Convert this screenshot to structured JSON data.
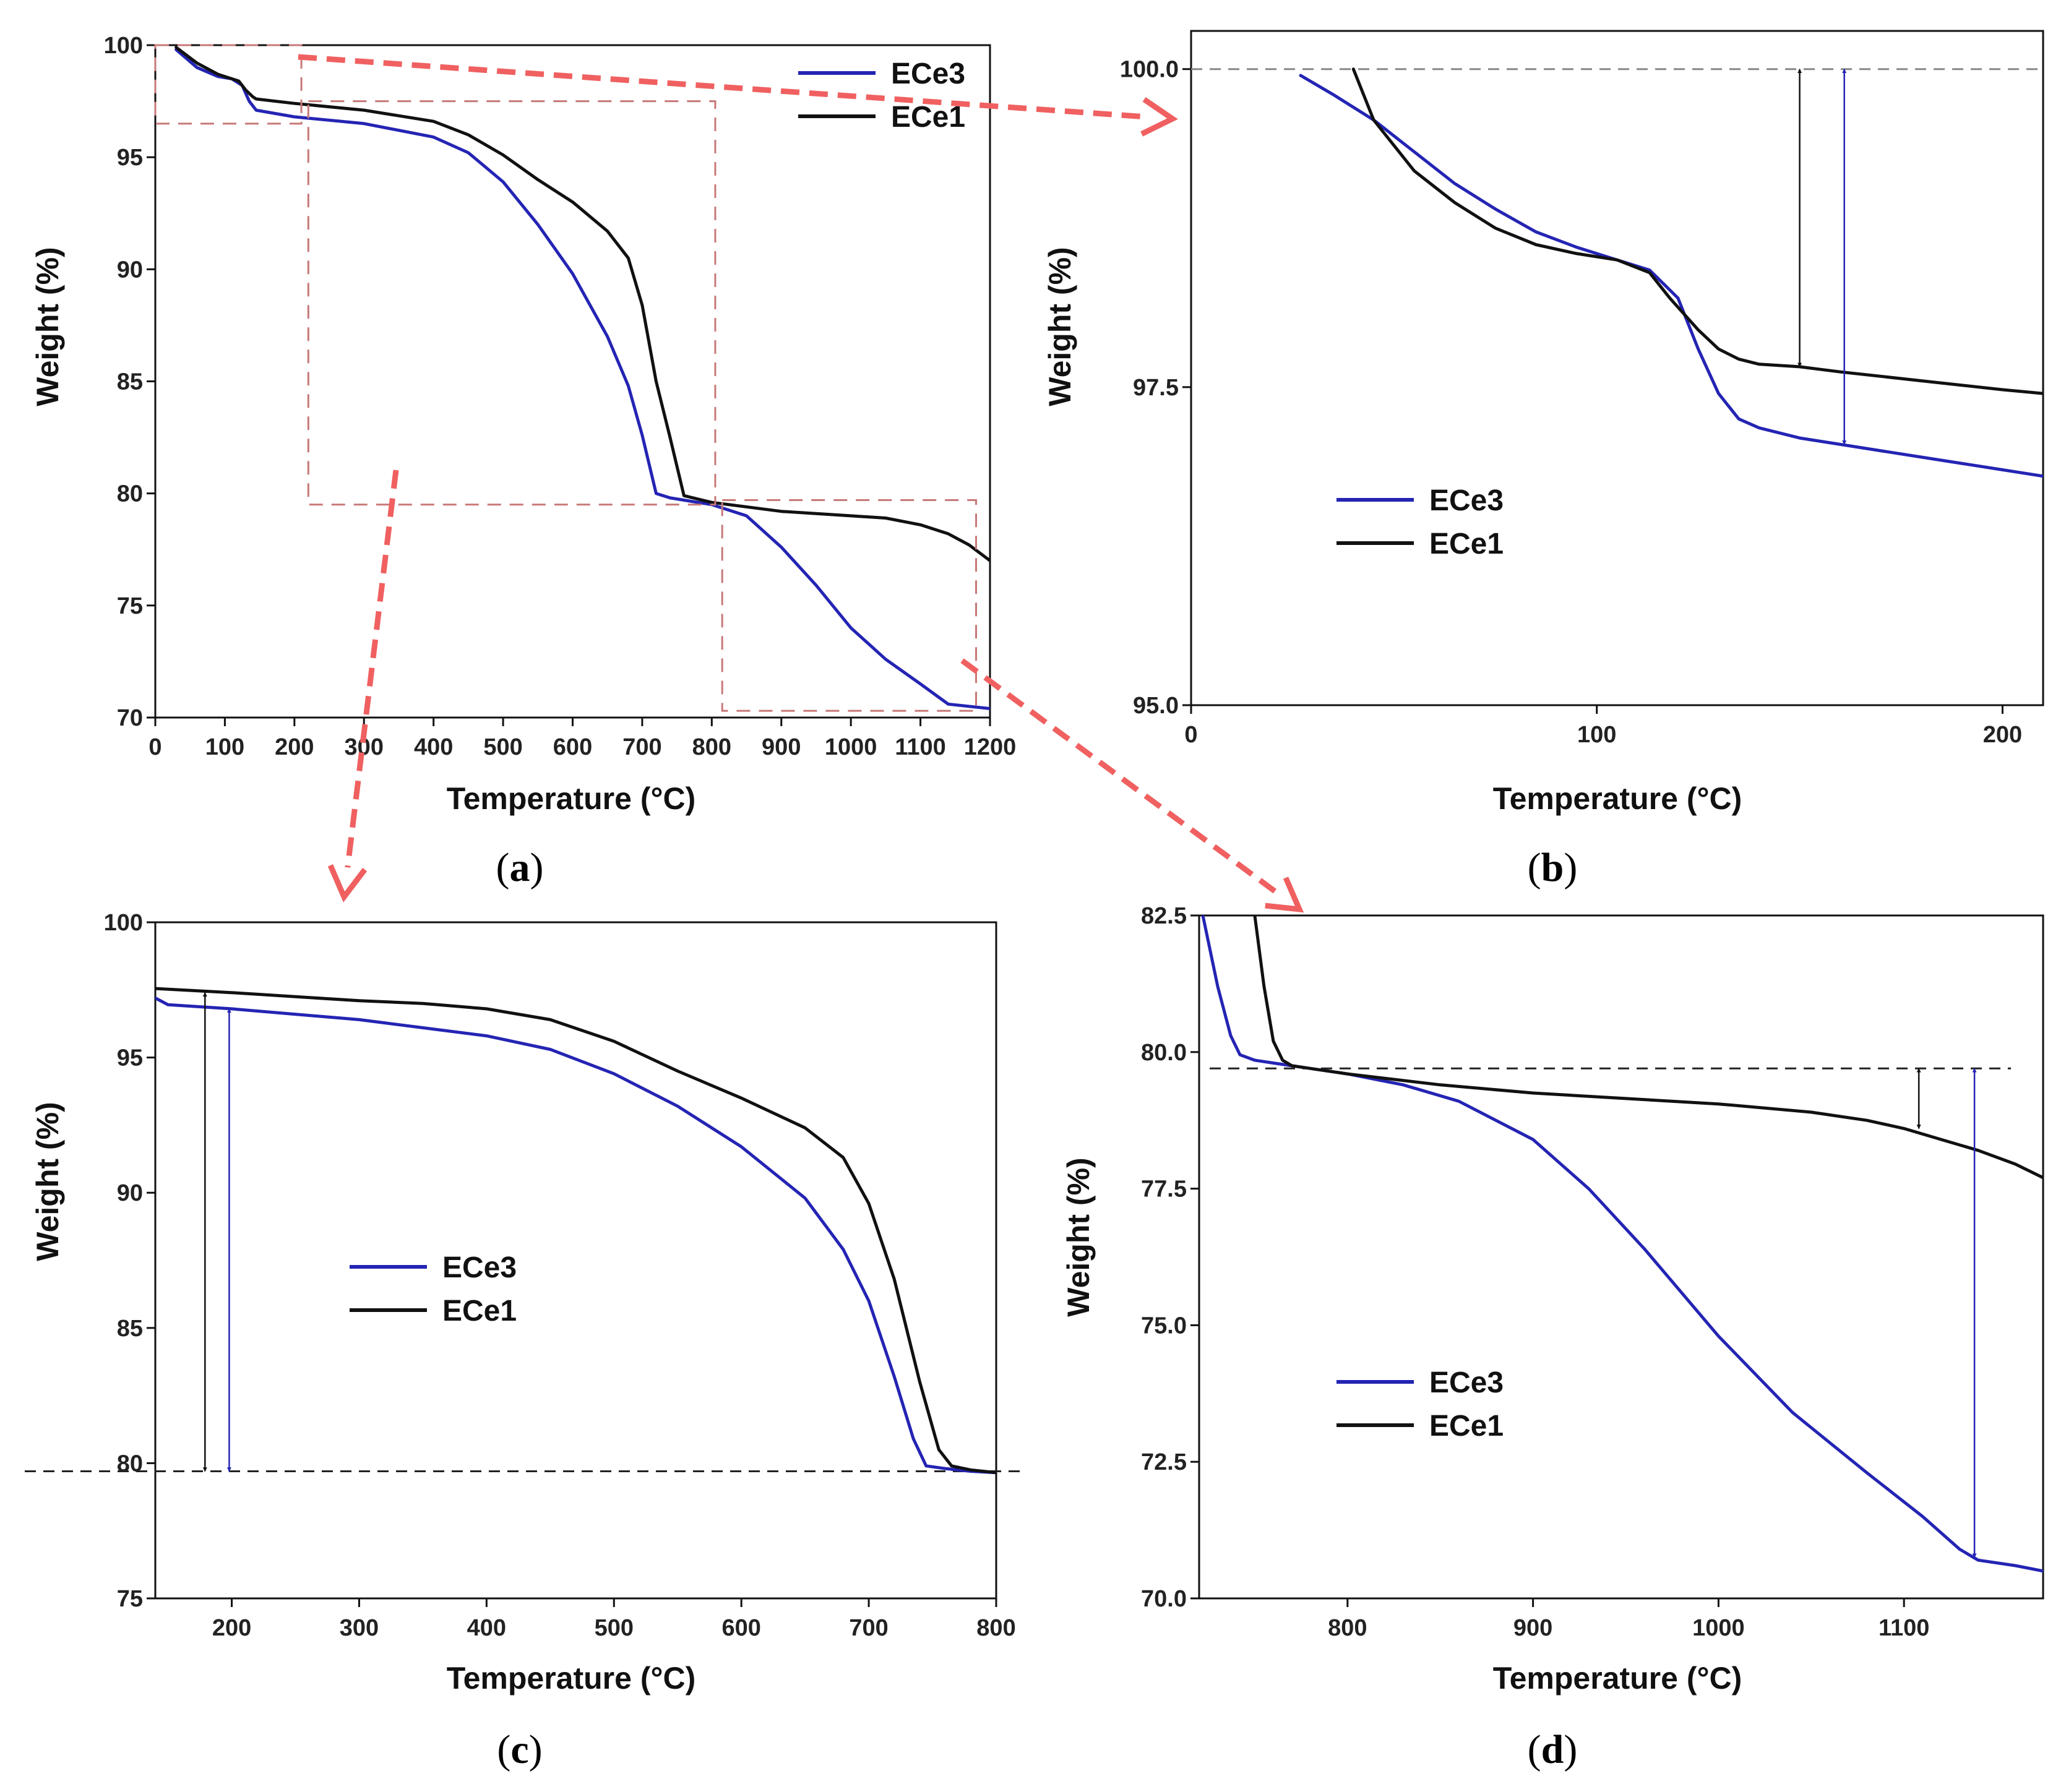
{
  "figure": {
    "colors": {
      "ECe3": "#2424b4",
      "ECe1": "#111111",
      "zoom_box": "#c87878",
      "zoom_arrow": "#f06060",
      "reference": "#444444"
    }
  },
  "chart_data": [
    {
      "id": "a",
      "type": "line",
      "panel_label": "a",
      "xlabel": "Temperature (°C)",
      "ylabel": "Weight (%)",
      "xlim": [
        0,
        1200
      ],
      "ylim": [
        70,
        100
      ],
      "xticks": [
        0,
        100,
        200,
        300,
        400,
        500,
        600,
        700,
        800,
        900,
        1000,
        1100,
        1200
      ],
      "yticks": [
        70,
        75,
        80,
        85,
        90,
        95,
        100
      ],
      "legend_position": "top-right",
      "series": [
        {
          "name": "ECe3",
          "color": "#2424b4",
          "x": [
            30,
            60,
            90,
            110,
            125,
            135,
            145,
            200,
            300,
            400,
            450,
            500,
            550,
            600,
            650,
            680,
            700,
            720,
            740,
            760,
            800,
            850,
            900,
            950,
            1000,
            1050,
            1100,
            1140,
            1200
          ],
          "y": [
            99.8,
            99.0,
            98.6,
            98.5,
            98.2,
            97.5,
            97.1,
            96.8,
            96.5,
            95.9,
            95.2,
            93.9,
            92.0,
            89.8,
            87.0,
            84.8,
            82.6,
            80.0,
            79.8,
            79.7,
            79.5,
            79.0,
            77.6,
            75.9,
            74.0,
            72.6,
            71.5,
            70.6,
            70.4
          ]
        },
        {
          "name": "ECe1",
          "color": "#111111",
          "x": [
            30,
            60,
            90,
            120,
            130,
            140,
            145,
            200,
            300,
            400,
            450,
            500,
            550,
            600,
            650,
            680,
            700,
            720,
            740,
            760,
            800,
            900,
            1000,
            1050,
            1100,
            1140,
            1170,
            1200
          ],
          "y": [
            99.9,
            99.2,
            98.7,
            98.4,
            98.0,
            97.7,
            97.6,
            97.4,
            97.1,
            96.6,
            96.0,
            95.1,
            94.0,
            93.0,
            91.7,
            90.5,
            88.4,
            85.0,
            82.5,
            79.9,
            79.6,
            79.2,
            79.0,
            78.9,
            78.6,
            78.2,
            77.7,
            77.0
          ]
        }
      ],
      "zoom_boxes": [
        {
          "x": [
            0,
            210
          ],
          "y": [
            96.5,
            100
          ]
        },
        {
          "x": [
            220,
            805
          ],
          "y": [
            79.5,
            97.5
          ]
        },
        {
          "x": [
            815,
            1180
          ],
          "y": [
            70.3,
            79.7
          ]
        }
      ]
    },
    {
      "id": "b",
      "type": "line",
      "panel_label": "b",
      "xlabel": "Temperature (°C)",
      "ylabel": "Weight (%)",
      "xlim": [
        0,
        210
      ],
      "ylim": [
        95,
        100.3
      ],
      "xticks": [
        0,
        100,
        200
      ],
      "xticklabels": [
        "0",
        "100",
        "200"
      ],
      "yticks": [
        95,
        97.5,
        100
      ],
      "yticklabels": [
        "95.0",
        "97.5",
        "100.0"
      ],
      "legend_position": "center-left",
      "series": [
        {
          "name": "ECe3",
          "color": "#2424b4",
          "x": [
            27,
            35,
            45,
            55,
            65,
            75,
            85,
            95,
            105,
            113,
            120,
            125,
            130,
            135,
            140,
            150,
            160,
            180,
            200,
            210
          ],
          "y": [
            99.95,
            99.8,
            99.6,
            99.35,
            99.1,
            98.9,
            98.72,
            98.6,
            98.5,
            98.42,
            98.2,
            97.8,
            97.45,
            97.25,
            97.18,
            97.1,
            97.05,
            96.95,
            96.85,
            96.8
          ]
        },
        {
          "name": "ECe1",
          "color": "#111111",
          "x": [
            40,
            45,
            55,
            65,
            75,
            85,
            95,
            105,
            113,
            118,
            125,
            130,
            135,
            140,
            150,
            160,
            180,
            200,
            210
          ],
          "y": [
            100.0,
            99.6,
            99.2,
            98.95,
            98.75,
            98.62,
            98.55,
            98.5,
            98.4,
            98.2,
            97.95,
            97.8,
            97.72,
            97.68,
            97.66,
            97.62,
            97.55,
            97.48,
            97.45
          ]
        }
      ],
      "reference_line_y": 100.0,
      "annotations": [
        {
          "type": "double-arrow",
          "series": "ECe1",
          "x": 150,
          "y_from": 100.0,
          "y_to": 97.66
        },
        {
          "type": "double-arrow",
          "series": "ECe3",
          "x": 161,
          "y_from": 100.0,
          "y_to": 97.05
        }
      ]
    },
    {
      "id": "c",
      "type": "line",
      "panel_label": "c",
      "xlabel": "Temperature (°C)",
      "ylabel": "Weight (%)",
      "xlim": [
        140,
        800
      ],
      "ylim": [
        75,
        100
      ],
      "xticks": [
        200,
        300,
        400,
        500,
        600,
        700,
        800
      ],
      "yticks": [
        75,
        80,
        85,
        90,
        95,
        100
      ],
      "legend_position": "center-left",
      "series": [
        {
          "name": "ECe3",
          "color": "#2424b4",
          "x": [
            140,
            150,
            200,
            300,
            350,
            400,
            450,
            500,
            550,
            600,
            650,
            680,
            700,
            720,
            735,
            745,
            760,
            780,
            800
          ],
          "y": [
            97.2,
            96.95,
            96.8,
            96.4,
            96.1,
            95.8,
            95.3,
            94.4,
            93.2,
            91.7,
            89.8,
            87.9,
            86.0,
            83.2,
            80.9,
            79.9,
            79.8,
            79.7,
            79.65
          ]
        },
        {
          "name": "ECe1",
          "color": "#111111",
          "x": [
            140,
            200,
            300,
            350,
            400,
            450,
            500,
            550,
            600,
            650,
            680,
            700,
            720,
            740,
            755,
            765,
            780,
            800
          ],
          "y": [
            97.55,
            97.4,
            97.1,
            97.0,
            96.8,
            96.4,
            95.6,
            94.5,
            93.5,
            92.4,
            91.3,
            89.6,
            86.8,
            83.0,
            80.5,
            79.9,
            79.75,
            79.65
          ]
        }
      ],
      "reference_line_y": 79.7,
      "annotations": [
        {
          "type": "double-arrow",
          "series": "ECe1",
          "x": 179,
          "y_from": 97.4,
          "y_to": 79.7
        },
        {
          "type": "double-arrow",
          "series": "ECe3",
          "x": 198,
          "y_from": 96.8,
          "y_to": 79.7
        }
      ]
    },
    {
      "id": "d",
      "type": "line",
      "panel_label": "d",
      "xlabel": "Temperature (°C)",
      "ylabel": "Weight (%)",
      "xlim": [
        720,
        1175
      ],
      "ylim": [
        70,
        82.5
      ],
      "xticks": [
        800,
        900,
        1000,
        1100
      ],
      "yticks": [
        70,
        72.5,
        75,
        77.5,
        80,
        82.5
      ],
      "yticklabels": [
        "70.0",
        "72.5",
        "75.0",
        "77.5",
        "80.0",
        "82.5"
      ],
      "legend_position": "bottom-left",
      "series": [
        {
          "name": "ECe3",
          "color": "#2424b4",
          "x": [
            722,
            730,
            737,
            742,
            750,
            760,
            780,
            800,
            830,
            860,
            900,
            930,
            960,
            1000,
            1040,
            1080,
            1110,
            1130,
            1140,
            1160,
            1175
          ],
          "y": [
            82.5,
            81.2,
            80.3,
            79.95,
            79.85,
            79.8,
            79.7,
            79.6,
            79.4,
            79.1,
            78.4,
            77.5,
            76.4,
            74.8,
            73.4,
            72.3,
            71.5,
            70.9,
            70.7,
            70.6,
            70.5
          ]
        },
        {
          "name": "ECe1",
          "color": "#111111",
          "x": [
            750,
            755,
            760,
            765,
            770,
            780,
            800,
            850,
            900,
            950,
            1000,
            1050,
            1080,
            1100,
            1120,
            1140,
            1160,
            1175
          ],
          "y": [
            82.5,
            81.2,
            80.2,
            79.85,
            79.75,
            79.7,
            79.6,
            79.4,
            79.25,
            79.15,
            79.05,
            78.9,
            78.75,
            78.6,
            78.4,
            78.2,
            77.95,
            77.7
          ]
        }
      ],
      "reference_line_y": 79.7,
      "annotations": [
        {
          "type": "double-arrow",
          "series": "ECe1",
          "x": 1108,
          "y_from": 79.7,
          "y_to": 78.6
        },
        {
          "type": "double-arrow",
          "series": "ECe3",
          "x": 1138,
          "y_from": 79.7,
          "y_to": 70.75
        }
      ]
    }
  ]
}
